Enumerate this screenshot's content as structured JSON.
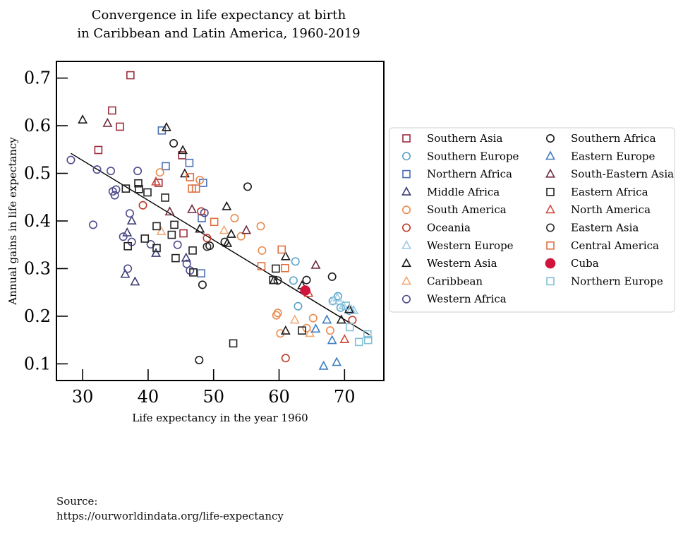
{
  "chart_data": {
    "type": "scatter",
    "title": "Convergence in life expectancy at birth",
    "subtitle": "in Caribbean and Latin America, 1960-2019",
    "xlabel": "Life expectancy in the year 1960",
    "ylabel": "Annual gains in life expectancy",
    "xlim": [
      26,
      76
    ],
    "ylim": [
      0.065,
      0.735
    ],
    "xticks": [
      30,
      40,
      50,
      60,
      70
    ],
    "yticks": [
      0.1,
      0.2,
      0.3,
      0.4,
      0.5,
      0.6,
      0.7
    ],
    "ytick_labels": [
      "0.1",
      "0.2",
      "0.3",
      "0.4",
      "0.5",
      "0.6",
      "0.7"
    ],
    "grid": false,
    "legend_position": "right",
    "trend_line": {
      "x": [
        28.2,
        73.8
      ],
      "y": [
        0.542,
        0.161
      ]
    },
    "series": [
      {
        "name": "Southern Asia",
        "marker": "square",
        "color": "#9b2d3c",
        "points": [
          [
            37.3,
            0.706
          ],
          [
            34.5,
            0.632
          ],
          [
            35.7,
            0.598
          ],
          [
            32.4,
            0.549
          ],
          [
            45.2,
            0.538
          ],
          [
            41.6,
            0.48
          ],
          [
            45.4,
            0.374
          ]
        ]
      },
      {
        "name": "Southern Europe",
        "marker": "circle",
        "color": "#5aa3c8",
        "points": [
          [
            62.5,
            0.315
          ],
          [
            62.2,
            0.275
          ],
          [
            62.9,
            0.221
          ],
          [
            69.0,
            0.242
          ],
          [
            68.2,
            0.232
          ],
          [
            69.4,
            0.218
          ],
          [
            70.7,
            0.212
          ]
        ]
      },
      {
        "name": "Northern Africa",
        "marker": "square",
        "color": "#4a6fb5",
        "points": [
          [
            42.1,
            0.59
          ],
          [
            42.7,
            0.515
          ],
          [
            46.3,
            0.522
          ],
          [
            48.4,
            0.48
          ],
          [
            48.1,
            0.29
          ],
          [
            48.2,
            0.406
          ]
        ]
      },
      {
        "name": "Middle Africa",
        "marker": "triangle",
        "color": "#3b3b75",
        "points": [
          [
            36.5,
            0.288
          ],
          [
            38.0,
            0.272
          ],
          [
            36.8,
            0.375
          ],
          [
            37.5,
            0.4
          ],
          [
            41.2,
            0.332
          ],
          [
            45.8,
            0.322
          ]
        ]
      },
      {
        "name": "South America",
        "marker": "circle",
        "color": "#e88a50",
        "points": [
          [
            41.8,
            0.502
          ],
          [
            47.9,
            0.486
          ],
          [
            53.2,
            0.406
          ],
          [
            54.2,
            0.368
          ],
          [
            57.2,
            0.389
          ],
          [
            57.4,
            0.338
          ],
          [
            59.8,
            0.207
          ],
          [
            59.6,
            0.202
          ],
          [
            60.2,
            0.164
          ],
          [
            64.2,
            0.175
          ],
          [
            65.2,
            0.196
          ],
          [
            67.8,
            0.17
          ]
        ]
      },
      {
        "name": "Oceania",
        "marker": "circle",
        "color": "#c0392b",
        "points": [
          [
            39.2,
            0.433
          ],
          [
            48.1,
            0.42
          ],
          [
            49.0,
            0.364
          ],
          [
            61.0,
            0.112
          ],
          [
            71.2,
            0.192
          ]
        ]
      },
      {
        "name": "Western Europe",
        "marker": "triangle",
        "color": "#9ccbe6",
        "points": [
          [
            68.3,
            0.232
          ],
          [
            68.9,
            0.238
          ],
          [
            69.8,
            0.222
          ],
          [
            71.0,
            0.214
          ],
          [
            71.4,
            0.212
          ]
        ]
      },
      {
        "name": "Western Asia",
        "marker": "triangle",
        "color": "#1a1a1a",
        "points": [
          [
            30.0,
            0.612
          ],
          [
            42.8,
            0.596
          ],
          [
            45.3,
            0.548
          ],
          [
            45.6,
            0.499
          ],
          [
            52.0,
            0.43
          ],
          [
            52.1,
            0.353
          ],
          [
            52.7,
            0.372
          ],
          [
            47.9,
            0.383
          ],
          [
            59.2,
            0.275
          ],
          [
            61.0,
            0.325
          ],
          [
            61.0,
            0.169
          ],
          [
            63.5,
            0.264
          ],
          [
            69.5,
            0.192
          ],
          [
            70.7,
            0.214
          ]
        ]
      },
      {
        "name": "Caribbean",
        "marker": "triangle",
        "color": "#f3a877",
        "points": [
          [
            42.0,
            0.378
          ],
          [
            51.6,
            0.38
          ],
          [
            62.4,
            0.192
          ],
          [
            64.7,
            0.164
          ]
        ]
      },
      {
        "name": "Western Africa",
        "marker": "circle",
        "color": "#4e4b8c",
        "points": [
          [
            28.2,
            0.528
          ],
          [
            31.6,
            0.392
          ],
          [
            32.2,
            0.508
          ],
          [
            34.3,
            0.505
          ],
          [
            34.6,
            0.462
          ],
          [
            35.1,
            0.466
          ],
          [
            34.9,
            0.454
          ],
          [
            36.2,
            0.367
          ],
          [
            36.9,
            0.3
          ],
          [
            37.2,
            0.416
          ],
          [
            37.5,
            0.356
          ],
          [
            38.4,
            0.505
          ],
          [
            40.4,
            0.351
          ],
          [
            44.5,
            0.35
          ],
          [
            45.9,
            0.31
          ],
          [
            46.4,
            0.296
          ],
          [
            48.6,
            0.417
          ]
        ]
      },
      {
        "name": "Southern Africa",
        "marker": "circle",
        "color": "#1a1a1a",
        "points": [
          [
            43.9,
            0.563
          ],
          [
            47.8,
            0.108
          ],
          [
            48.3,
            0.266
          ],
          [
            49.4,
            0.348
          ],
          [
            51.7,
            0.356
          ],
          [
            55.2,
            0.472
          ],
          [
            64.2,
            0.276
          ],
          [
            68.1,
            0.283
          ]
        ]
      },
      {
        "name": "Eastern Europe",
        "marker": "triangle",
        "color": "#3f7fc0",
        "points": [
          [
            65.6,
            0.173
          ],
          [
            66.8,
            0.095
          ],
          [
            67.3,
            0.192
          ],
          [
            68.1,
            0.149
          ],
          [
            68.8,
            0.103
          ]
        ]
      },
      {
        "name": "South-Eastern Asia",
        "marker": "triangle",
        "color": "#6e2a3c",
        "points": [
          [
            33.8,
            0.605
          ],
          [
            43.3,
            0.419
          ],
          [
            46.7,
            0.424
          ],
          [
            55.0,
            0.38
          ],
          [
            65.6,
            0.307
          ]
        ]
      },
      {
        "name": "Eastern Africa",
        "marker": "square",
        "color": "#222222",
        "points": [
          [
            36.6,
            0.468
          ],
          [
            36.9,
            0.347
          ],
          [
            38.5,
            0.479
          ],
          [
            38.6,
            0.467
          ],
          [
            39.9,
            0.46
          ],
          [
            39.5,
            0.363
          ],
          [
            41.3,
            0.389
          ],
          [
            41.3,
            0.343
          ],
          [
            42.6,
            0.449
          ],
          [
            43.6,
            0.371
          ],
          [
            44.0,
            0.392
          ],
          [
            44.2,
            0.322
          ],
          [
            46.8,
            0.338
          ],
          [
            46.9,
            0.292
          ],
          [
            53.0,
            0.143
          ],
          [
            59.1,
            0.276
          ],
          [
            59.5,
            0.3
          ],
          [
            63.5,
            0.17
          ]
        ]
      },
      {
        "name": "North America",
        "marker": "triangle",
        "color": "#d04a3c",
        "points": [
          [
            41.2,
            0.482
          ],
          [
            64.5,
            0.248
          ],
          [
            70.0,
            0.151
          ]
        ]
      },
      {
        "name": "Eastern Asia",
        "marker": "circle",
        "color": "#2a2a2a",
        "points": [
          [
            49.0,
            0.346
          ],
          [
            59.8,
            0.275
          ]
        ]
      },
      {
        "name": "Central America",
        "marker": "square",
        "color": "#e07040",
        "points": [
          [
            46.4,
            0.492
          ],
          [
            46.7,
            0.468
          ],
          [
            47.3,
            0.468
          ],
          [
            50.1,
            0.398
          ],
          [
            57.3,
            0.305
          ],
          [
            60.4,
            0.34
          ],
          [
            60.9,
            0.301
          ]
        ]
      },
      {
        "name": "Cuba",
        "marker": "filled-circle",
        "color": "#d0143c",
        "points": [
          [
            64.0,
            0.254
          ]
        ]
      },
      {
        "name": "Northern Europe",
        "marker": "square",
        "color": "#7fbfd6",
        "points": [
          [
            70.2,
            0.222
          ],
          [
            70.8,
            0.177
          ],
          [
            72.2,
            0.146
          ],
          [
            73.5,
            0.162
          ],
          [
            73.6,
            0.15
          ]
        ]
      }
    ]
  },
  "source": {
    "label": "Source:",
    "url": "https://ourworldindata.org/life-expectancy"
  }
}
